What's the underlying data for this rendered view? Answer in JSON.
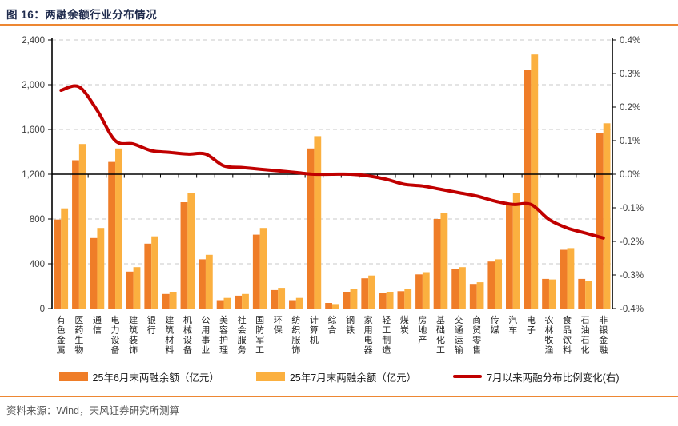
{
  "header": {
    "title": "图 16：两融余额行业分布情况"
  },
  "footer": {
    "source": "资料来源：Wind，天风证券研究所测算"
  },
  "colors": {
    "june_bar": "#EF7D28",
    "july_bar": "#FBB040",
    "change_line": "#C00000",
    "accent_rule": "#ED8733",
    "title_text": "#1F2B4D",
    "axis_text": "#3D3D3D",
    "gridline": "#C9C9C9",
    "category_text": "#262626",
    "source_text": "#595959"
  },
  "legend": [
    {
      "label": "25年6月末两融余额（亿元）",
      "color": "#EF7D28",
      "type": "bar"
    },
    {
      "label": "25年7月末两融余额（亿元）",
      "color": "#FBB040",
      "type": "bar"
    },
    {
      "label": "7月以来两融分布比例变化(右)",
      "color": "#C00000",
      "type": "line"
    }
  ],
  "chart_data": {
    "type": "bar",
    "subtype": "grouped bars + line on secondary axis",
    "title": "两融余额行业分布情况",
    "categories": [
      "有色金属",
      "医药生物",
      "通信",
      "电力设备",
      "建筑装饰",
      "银行",
      "建筑材料",
      "机械设备",
      "公用事业",
      "美容护理",
      "社会服务",
      "国防军工",
      "环保",
      "纺织服饰",
      "计算机",
      "综合",
      "钢铁",
      "家用电器",
      "轻工制造",
      "煤炭",
      "房地产",
      "基础化工",
      "交通运输",
      "商贸零售",
      "传媒",
      "汽车",
      "电子",
      "农林牧渔",
      "食品饮料",
      "石油石化",
      "非银金融"
    ],
    "series": [
      {
        "name": "25年6月末两融余额（亿元）",
        "type": "bar",
        "axis": "left",
        "color": "#EF7D28",
        "values": [
          795,
          1325,
          630,
          1310,
          330,
          580,
          130,
          950,
          440,
          75,
          115,
          660,
          165,
          75,
          1430,
          50,
          150,
          270,
          140,
          155,
          305,
          800,
          350,
          220,
          420,
          925,
          2130,
          265,
          525,
          265,
          1570
        ]
      },
      {
        "name": "25年7月末两融余额（亿元）",
        "type": "bar",
        "axis": "left",
        "color": "#FBB040",
        "values": [
          895,
          1470,
          720,
          1430,
          370,
          645,
          150,
          1030,
          480,
          95,
          130,
          720,
          185,
          95,
          1540,
          40,
          175,
          295,
          150,
          175,
          325,
          855,
          370,
          235,
          440,
          1030,
          2270,
          260,
          540,
          245,
          1655
        ]
      },
      {
        "name": "7月以来两融分布比例变化(右)",
        "type": "line",
        "axis": "right",
        "color": "#C00000",
        "values": [
          0.25,
          0.26,
          0.19,
          0.1,
          0.09,
          0.07,
          0.065,
          0.06,
          0.06,
          0.025,
          0.02,
          0.015,
          0.01,
          0.005,
          0.0,
          0.0,
          0.0,
          -0.005,
          -0.015,
          -0.03,
          -0.035,
          -0.045,
          -0.055,
          -0.065,
          -0.08,
          -0.09,
          -0.09,
          -0.135,
          -0.16,
          -0.175,
          -0.19
        ]
      }
    ],
    "left_axis": {
      "min": 0,
      "max": 2400,
      "step": 400,
      "tick_labels": [
        "0",
        "400",
        "800",
        "1,200",
        "1,600",
        "2,000",
        "2,400"
      ]
    },
    "right_axis": {
      "min": -0.4,
      "max": 0.4,
      "step": 0.1,
      "tick_labels": [
        "-0.4%",
        "-0.3%",
        "-0.2%",
        "-0.1%",
        "0.0%",
        "0.1%",
        "0.2%",
        "0.3%",
        "0.4%"
      ]
    },
    "grid": "horizontal dashed gridlines; solid black category axis at left-axis 1200 / right-axis 0.0%",
    "legend_position": "bottom center"
  }
}
